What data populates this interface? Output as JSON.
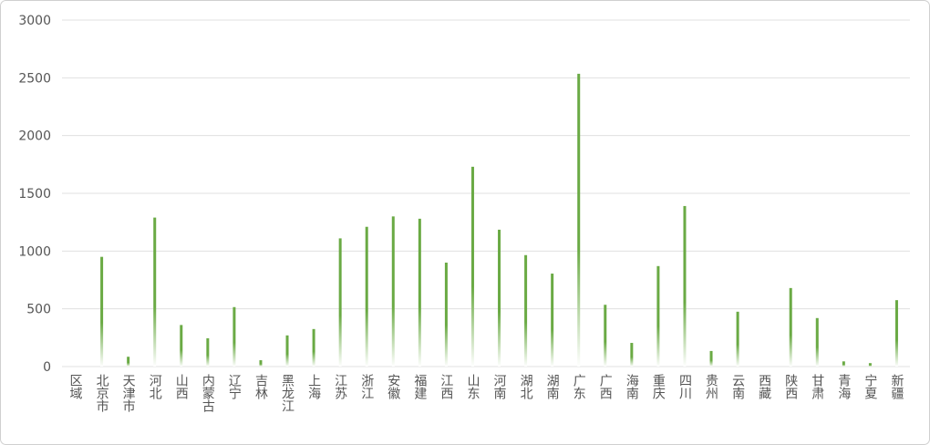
{
  "chart_data": {
    "type": "bar",
    "categories": [
      "区域",
      "北京市",
      "天津市",
      "河北",
      "山西",
      "内蒙古",
      "辽宁",
      "吉林",
      "黑龙江",
      "上海",
      "江苏",
      "浙江",
      "安徽",
      "福建",
      "江西",
      "山东",
      "河南",
      "湖北",
      "湖南",
      "广东",
      "广西",
      "海南",
      "重庆",
      "四川",
      "贵州",
      "云南",
      "西藏",
      "陕西",
      "甘肃",
      "青海",
      "宁夏",
      "新疆"
    ],
    "values": [
      null,
      950,
      85,
      1290,
      360,
      245,
      515,
      55,
      270,
      325,
      1110,
      1210,
      1300,
      1280,
      900,
      1730,
      1185,
      965,
      805,
      2535,
      535,
      205,
      870,
      1390,
      135,
      475,
      0,
      680,
      420,
      45,
      30,
      575
    ],
    "color": "#6aaa44",
    "ylim": [
      0,
      3000
    ],
    "yticks": [
      0,
      500,
      1000,
      1500,
      2000,
      2500,
      3000
    ],
    "grid": true
  }
}
